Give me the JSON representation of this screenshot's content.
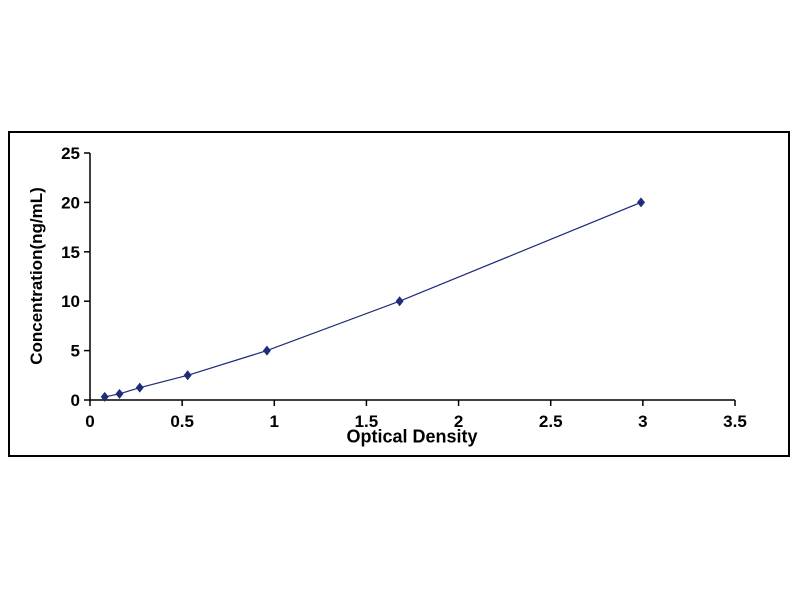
{
  "chart_data": {
    "type": "line",
    "title": "",
    "xlabel": "Optical Density",
    "ylabel": "Concentration(ng/mL)",
    "x": [
      0.08,
      0.16,
      0.27,
      0.53,
      0.96,
      1.68,
      2.99
    ],
    "y": [
      0.312,
      0.625,
      1.25,
      2.5,
      5,
      10,
      20
    ],
    "xlim": [
      0,
      3.5
    ],
    "ylim": [
      0,
      25
    ],
    "x_ticks": [
      0,
      0.5,
      1,
      1.5,
      2,
      2.5,
      3,
      3.5
    ],
    "x_tick_labels": [
      "0",
      "0.5",
      "1",
      "1.5",
      "2",
      "2.5",
      "3",
      "3.5"
    ],
    "y_ticks": [
      0,
      5,
      10,
      15,
      20,
      25
    ],
    "y_tick_labels": [
      "0",
      "5",
      "10",
      "15",
      "20",
      "25"
    ],
    "grid": false,
    "legend": null,
    "marker": "diamond",
    "line_color": "#1f2c7b",
    "marker_color": "#1f2c7b",
    "axis_color": "#000000",
    "frame_border_color": "#000000",
    "background_color": "#ffffff"
  }
}
